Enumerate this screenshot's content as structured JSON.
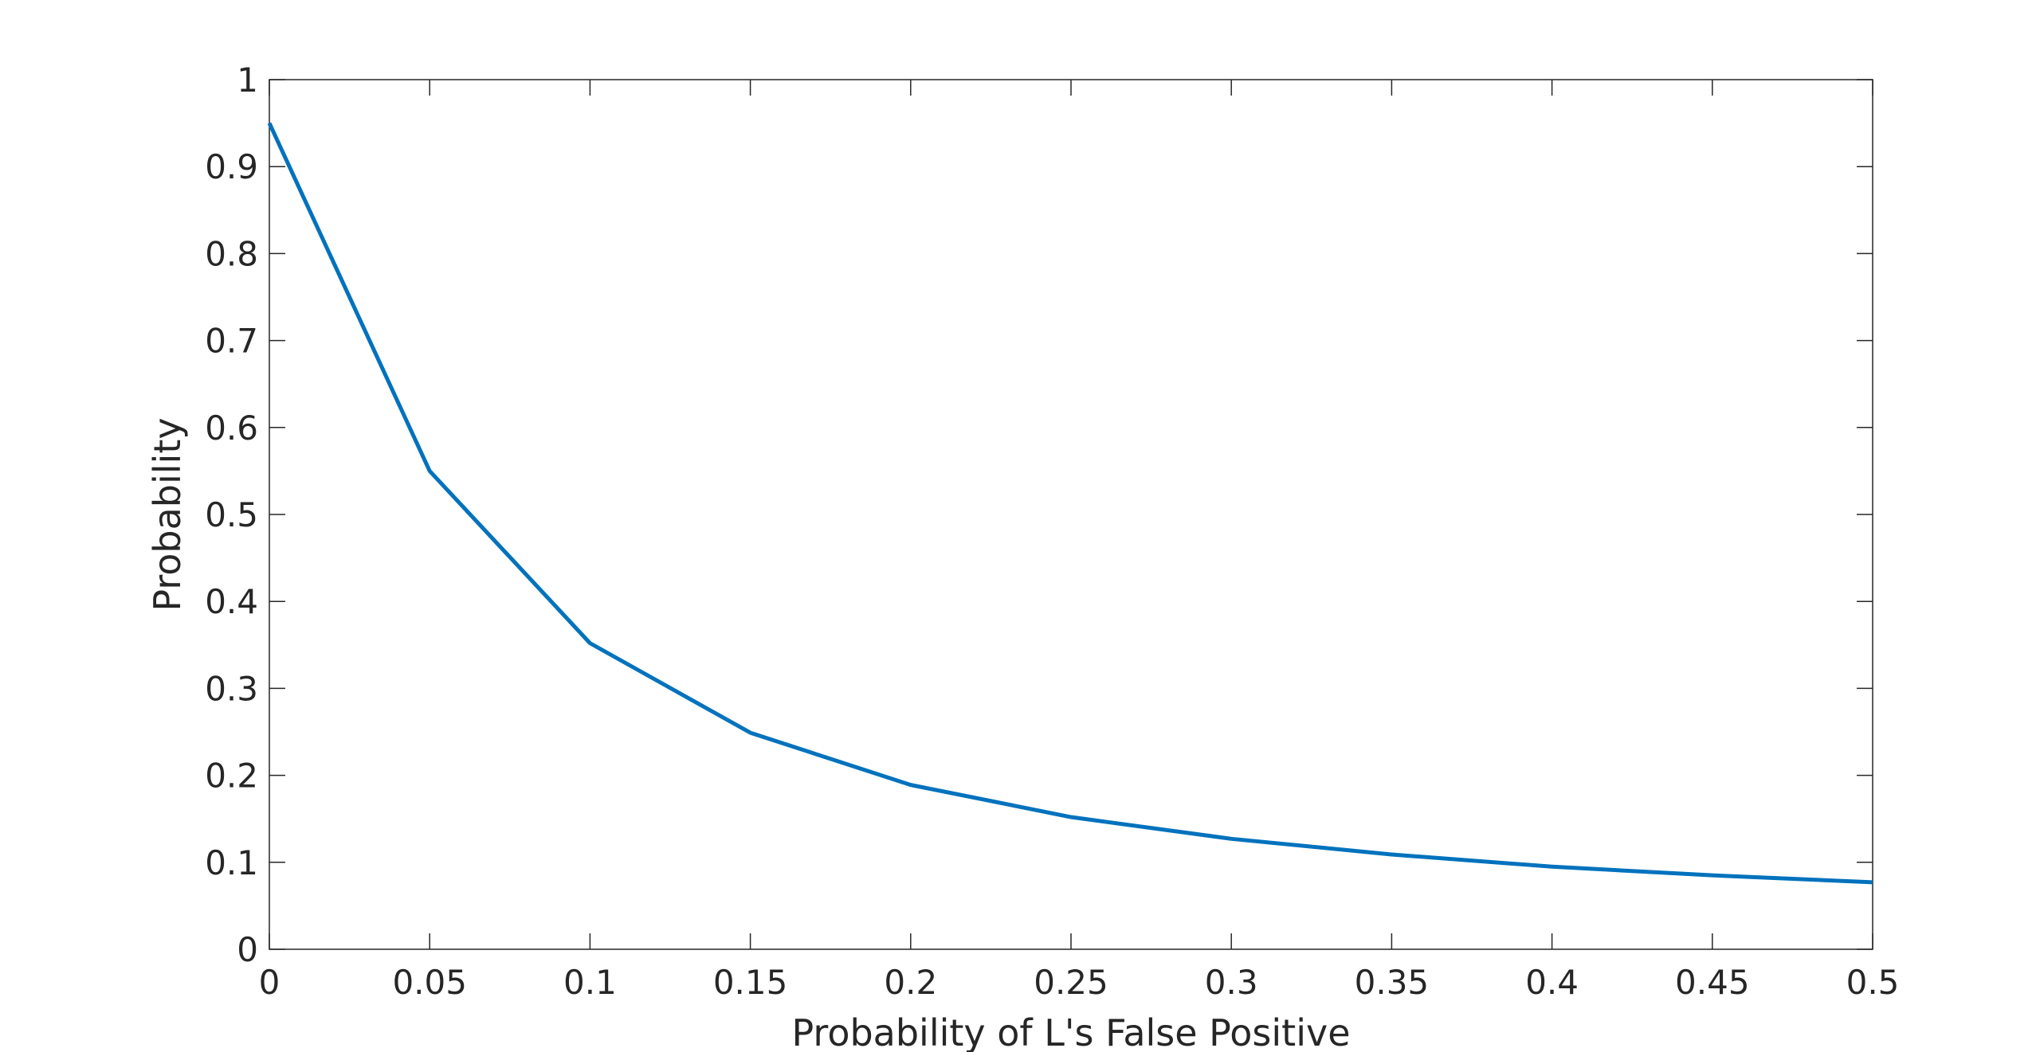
{
  "chart_data": {
    "type": "line",
    "title": "",
    "xlabel": "Probability of L's False Positive",
    "ylabel": "Probability",
    "xlim": [
      0,
      0.5
    ],
    "ylim": [
      0,
      1
    ],
    "x_ticks": [
      "0",
      "0.05",
      "0.1",
      "0.15",
      "0.2",
      "0.25",
      "0.3",
      "0.35",
      "0.4",
      "0.45",
      "0.5"
    ],
    "y_ticks": [
      "0",
      "0.1",
      "0.2",
      "0.3",
      "0.4",
      "0.5",
      "0.6",
      "0.7",
      "0.8",
      "0.9",
      "1"
    ],
    "grid": false,
    "legend": "none",
    "series": [
      {
        "color": "#0072BD",
        "x": [
          0,
          0.05,
          0.1,
          0.15,
          0.2,
          0.25,
          0.3,
          0.35,
          0.4,
          0.45,
          0.5
        ],
        "y": [
          0.95,
          0.55,
          0.352,
          0.249,
          0.189,
          0.152,
          0.127,
          0.109,
          0.095,
          0.085,
          0.077
        ]
      }
    ]
  }
}
